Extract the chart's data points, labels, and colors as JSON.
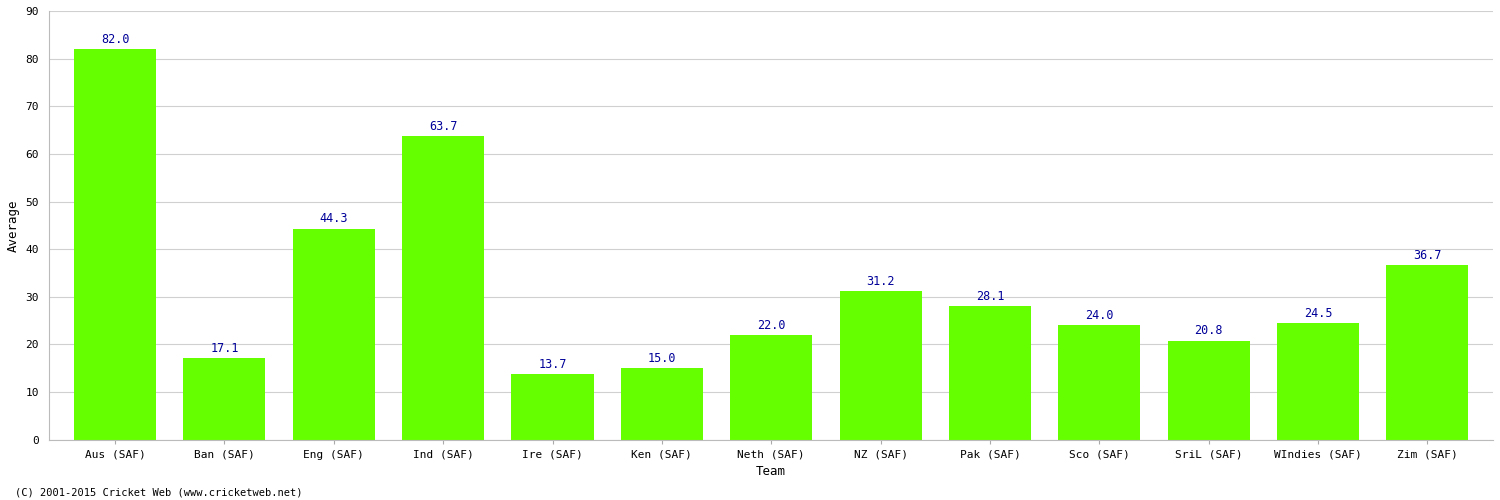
{
  "categories": [
    "Aus (SAF)",
    "Ban (SAF)",
    "Eng (SAF)",
    "Ind (SAF)",
    "Ire (SAF)",
    "Ken (SAF)",
    "Neth (SAF)",
    "NZ (SAF)",
    "Pak (SAF)",
    "Sco (SAF)",
    "SriL (SAF)",
    "WIndies (SAF)",
    "Zim (SAF)"
  ],
  "values": [
    82.0,
    17.1,
    44.3,
    63.7,
    13.7,
    15.0,
    22.0,
    31.2,
    28.1,
    24.0,
    20.8,
    24.5,
    36.7
  ],
  "bar_color": "#66ff00",
  "bar_edge_color": "#66ff00",
  "label_color": "#000099",
  "xlabel": "Team",
  "ylabel": "Average",
  "ylim": [
    0,
    90
  ],
  "yticks": [
    0,
    10,
    20,
    30,
    40,
    50,
    60,
    70,
    80,
    90
  ],
  "background_color": "#ffffff",
  "grid_color": "#d0d0d0",
  "label_fontsize": 8.5,
  "axis_label_fontsize": 9,
  "tick_fontsize": 8,
  "footer": "(C) 2001-2015 Cricket Web (www.cricketweb.net)",
  "bar_width": 0.75
}
